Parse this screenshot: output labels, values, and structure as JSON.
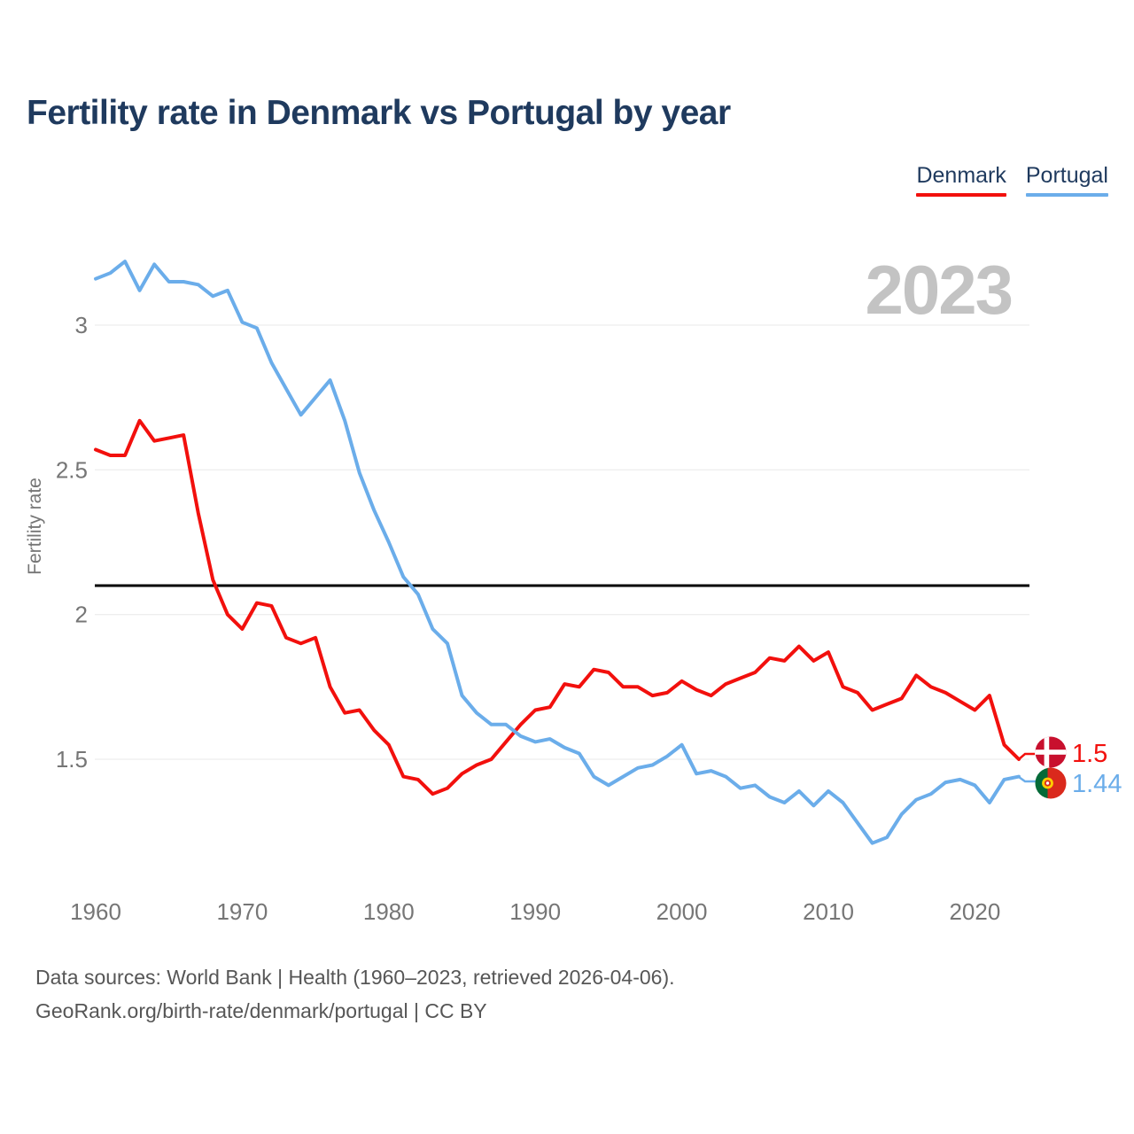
{
  "title": "Fertility rate in Denmark vs Portugal by year",
  "legend": [
    {
      "label": "Denmark",
      "color": "#f2100d"
    },
    {
      "label": "Portugal",
      "color": "#6badea"
    }
  ],
  "watermark": "2023",
  "y_axis": {
    "label": "Fertility rate",
    "ticks": [
      3,
      2.5,
      2,
      1.5
    ]
  },
  "x_axis": {
    "ticks": [
      1960,
      1970,
      1980,
      1990,
      2000,
      2010,
      2020
    ]
  },
  "end_labels": [
    {
      "series": "Denmark",
      "value": "1.5",
      "color": "#f2100d",
      "flag": "denmark-flag"
    },
    {
      "series": "Portugal",
      "value": "1.44",
      "color": "#6badea",
      "flag": "portugal-flag"
    }
  ],
  "footer": {
    "line1": "Data sources: World Bank | Health (1960–2023, retrieved 2026-04-06).",
    "line2": "GeoRank.org/birth-rate/denmark/portugal | CC BY"
  },
  "chart_data": {
    "type": "line",
    "title": "Fertility rate in Denmark vs Portugal by year",
    "xlabel": "",
    "ylabel": "Fertility rate",
    "xlim": [
      1960,
      2023
    ],
    "ylim": [
      1.05,
      3.4
    ],
    "grid": "horizontal",
    "legend_position": "top-right",
    "annotations": {
      "replacement_fertility_line": 2.1,
      "year_watermark": "2023"
    },
    "x": [
      1960,
      1961,
      1962,
      1963,
      1964,
      1965,
      1966,
      1967,
      1968,
      1969,
      1970,
      1971,
      1972,
      1973,
      1974,
      1975,
      1976,
      1977,
      1978,
      1979,
      1980,
      1981,
      1982,
      1983,
      1984,
      1985,
      1986,
      1987,
      1988,
      1989,
      1990,
      1991,
      1992,
      1993,
      1994,
      1995,
      1996,
      1997,
      1998,
      1999,
      2000,
      2001,
      2002,
      2003,
      2004,
      2005,
      2006,
      2007,
      2008,
      2009,
      2010,
      2011,
      2012,
      2013,
      2014,
      2015,
      2016,
      2017,
      2018,
      2019,
      2020,
      2021,
      2022,
      2023
    ],
    "series": [
      {
        "name": "Denmark",
        "color": "#f2100d",
        "values": [
          2.57,
          2.55,
          2.55,
          2.67,
          2.6,
          2.61,
          2.62,
          2.35,
          2.12,
          2.0,
          1.95,
          2.04,
          2.03,
          1.92,
          1.9,
          1.92,
          1.75,
          1.66,
          1.67,
          1.6,
          1.55,
          1.44,
          1.43,
          1.38,
          1.4,
          1.45,
          1.48,
          1.5,
          1.56,
          1.62,
          1.67,
          1.68,
          1.76,
          1.75,
          1.81,
          1.8,
          1.75,
          1.75,
          1.72,
          1.73,
          1.77,
          1.74,
          1.72,
          1.76,
          1.78,
          1.8,
          1.85,
          1.84,
          1.89,
          1.84,
          1.87,
          1.75,
          1.73,
          1.67,
          1.69,
          1.71,
          1.79,
          1.75,
          1.73,
          1.7,
          1.67,
          1.72,
          1.55,
          1.5
        ]
      },
      {
        "name": "Portugal",
        "color": "#6badea",
        "values": [
          3.16,
          3.18,
          3.22,
          3.12,
          3.21,
          3.15,
          3.15,
          3.14,
          3.1,
          3.12,
          3.01,
          2.99,
          2.87,
          2.78,
          2.69,
          2.75,
          2.81,
          2.67,
          2.49,
          2.36,
          2.25,
          2.13,
          2.07,
          1.95,
          1.9,
          1.72,
          1.66,
          1.62,
          1.62,
          1.58,
          1.56,
          1.57,
          1.54,
          1.52,
          1.44,
          1.41,
          1.44,
          1.47,
          1.48,
          1.51,
          1.55,
          1.45,
          1.46,
          1.44,
          1.4,
          1.41,
          1.37,
          1.35,
          1.39,
          1.34,
          1.39,
          1.35,
          1.28,
          1.21,
          1.23,
          1.31,
          1.36,
          1.38,
          1.42,
          1.43,
          1.41,
          1.35,
          1.43,
          1.44
        ]
      }
    ]
  }
}
